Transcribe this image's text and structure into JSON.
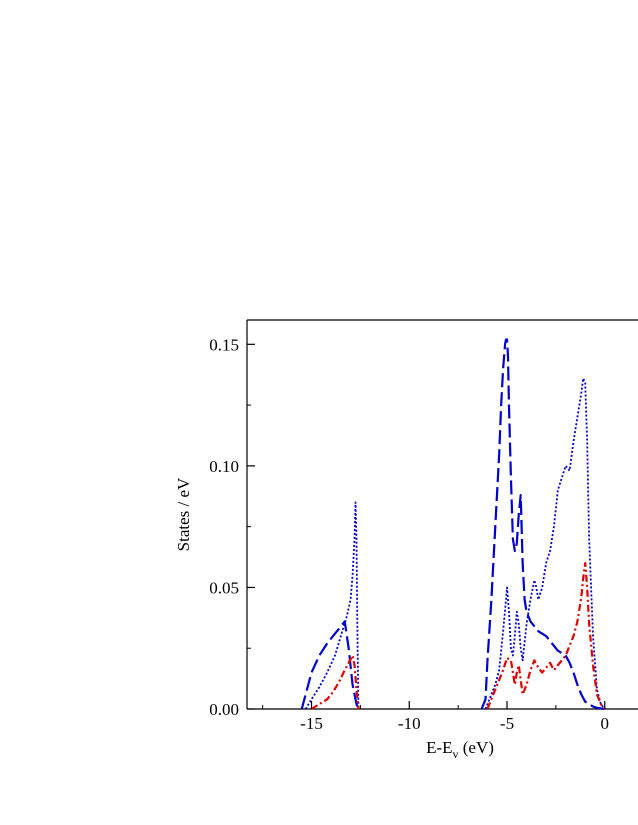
{
  "chart_data": {
    "type": "line",
    "xlabel": "E-E",
    "xlabel_sub": "v",
    "xlabel_unit": " (eV)",
    "ylabel": "States / eV",
    "xlim": [
      -18.3,
      1.7
    ],
    "ylim": [
      0,
      0.16
    ],
    "xticks": [
      -15,
      -10,
      -5,
      0
    ],
    "xtick_labels": [
      "-15",
      "-10",
      "-5",
      "0"
    ],
    "yticks": [
      0,
      0.05,
      0.1,
      0.15
    ],
    "ytick_labels": [
      "0.00",
      "0.05",
      "0.10",
      "0.15"
    ],
    "grid": false,
    "legend": "none",
    "series": [
      {
        "style": "dashed",
        "color": "#0000cc",
        "x": [
          -15.5,
          -15.3,
          -15.0,
          -14.6,
          -14.2,
          -13.8,
          -13.5,
          -13.3,
          -13.1,
          -12.9,
          -12.7,
          -12.6,
          -6.3,
          -6.1,
          -6.0,
          -5.8,
          -5.6,
          -5.4,
          -5.3,
          -5.2,
          -5.1,
          -5.05,
          -5.0,
          -4.95,
          -4.9,
          -4.8,
          -4.7,
          -4.6,
          -4.5,
          -4.4,
          -4.3,
          -4.2,
          -4.1,
          -4.0,
          -3.8,
          -3.6,
          -3.4,
          -3.2,
          -3.0,
          -2.8,
          -2.6,
          -2.4,
          -2.2,
          -2.0,
          -1.8,
          -1.6,
          -1.4,
          -1.2,
          -1.0,
          -0.8,
          -0.6,
          -0.4,
          -0.2,
          0.0
        ],
        "y": [
          0.0,
          0.006,
          0.015,
          0.022,
          0.027,
          0.031,
          0.034,
          0.036,
          0.025,
          0.01,
          0.002,
          0.0,
          0.0,
          0.004,
          0.02,
          0.045,
          0.075,
          0.105,
          0.125,
          0.14,
          0.15,
          0.152,
          0.152,
          0.145,
          0.125,
          0.095,
          0.07,
          0.065,
          0.068,
          0.08,
          0.088,
          0.06,
          0.045,
          0.04,
          0.036,
          0.034,
          0.032,
          0.031,
          0.03,
          0.028,
          0.026,
          0.024,
          0.023,
          0.022,
          0.019,
          0.015,
          0.01,
          0.006,
          0.003,
          0.002,
          0.001,
          0.0005,
          0.0002,
          0.0
        ]
      },
      {
        "style": "dotted",
        "color": "#0000cc",
        "x": [
          -15.3,
          -15.0,
          -14.6,
          -14.2,
          -13.8,
          -13.5,
          -13.2,
          -13.0,
          -12.9,
          -12.8,
          -12.75,
          -12.7,
          -12.65,
          -12.6,
          -6.1,
          -5.9,
          -5.6,
          -5.4,
          -5.2,
          -5.05,
          -5.0,
          -4.9,
          -4.8,
          -4.7,
          -4.6,
          -4.5,
          -4.4,
          -4.3,
          -4.2,
          -4.0,
          -3.8,
          -3.6,
          -3.5,
          -3.4,
          -3.2,
          -3.0,
          -2.8,
          -2.6,
          -2.4,
          -2.2,
          -2.0,
          -1.8,
          -1.6,
          -1.4,
          -1.2,
          -1.1,
          -1.0,
          -0.9,
          -0.8,
          -0.6,
          -0.4,
          -0.2,
          0.0
        ],
        "y": [
          0.0,
          0.004,
          0.009,
          0.015,
          0.022,
          0.03,
          0.038,
          0.045,
          0.055,
          0.07,
          0.085,
          0.07,
          0.03,
          0.0,
          0.0,
          0.004,
          0.01,
          0.016,
          0.032,
          0.045,
          0.05,
          0.04,
          0.025,
          0.022,
          0.03,
          0.04,
          0.035,
          0.025,
          0.02,
          0.035,
          0.045,
          0.053,
          0.05,
          0.045,
          0.05,
          0.06,
          0.065,
          0.075,
          0.09,
          0.095,
          0.1,
          0.098,
          0.11,
          0.12,
          0.13,
          0.136,
          0.134,
          0.11,
          0.07,
          0.03,
          0.008,
          0.002,
          0.0
        ]
      },
      {
        "style": "dashdot",
        "color": "#dd0000",
        "x": [
          -15.0,
          -14.6,
          -14.2,
          -13.9,
          -13.6,
          -13.3,
          -13.1,
          -12.9,
          -12.8,
          -12.7,
          -12.6,
          -6.0,
          -5.8,
          -5.6,
          -5.4,
          -5.2,
          -5.0,
          -4.8,
          -4.6,
          -4.5,
          -4.4,
          -4.3,
          -4.2,
          -4.0,
          -3.8,
          -3.6,
          -3.4,
          -3.2,
          -3.0,
          -2.8,
          -2.6,
          -2.4,
          -2.2,
          -2.0,
          -1.8,
          -1.6,
          -1.4,
          -1.2,
          -1.1,
          -1.0,
          -0.9,
          -0.8,
          -0.6,
          -0.4,
          -0.2,
          0.0
        ],
        "y": [
          0.0,
          0.002,
          0.004,
          0.007,
          0.011,
          0.016,
          0.019,
          0.022,
          0.018,
          0.008,
          0.0,
          0.0,
          0.004,
          0.008,
          0.012,
          0.016,
          0.021,
          0.02,
          0.01,
          0.015,
          0.018,
          0.012,
          0.006,
          0.01,
          0.016,
          0.02,
          0.017,
          0.015,
          0.017,
          0.019,
          0.016,
          0.018,
          0.02,
          0.022,
          0.026,
          0.03,
          0.036,
          0.046,
          0.054,
          0.06,
          0.05,
          0.035,
          0.018,
          0.006,
          0.002,
          0.0
        ]
      }
    ]
  }
}
